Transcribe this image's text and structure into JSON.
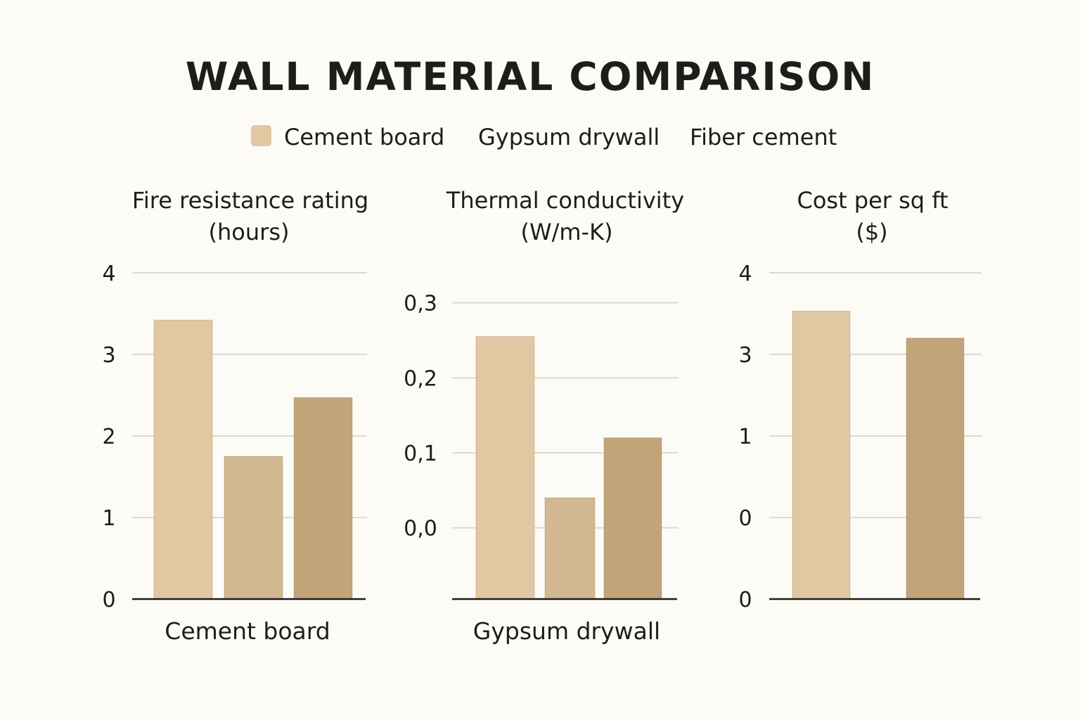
{
  "title": "WALL MATERIAL COMPARISON",
  "legend": [
    {
      "label": "Cement board",
      "color": "#e1c8a2",
      "swatch": true
    },
    {
      "label": "Gypsum drywall",
      "color": "#d2b890",
      "swatch": false
    },
    {
      "label": "Fiber cement",
      "color": "#c1a47a",
      "swatch": false
    }
  ],
  "colors": {
    "cement_board": "#e1c8a2",
    "gypsum_drywall": "#d2b890",
    "fiber_cement": "#c1a47a"
  },
  "chart_data": [
    {
      "type": "bar",
      "title_lines": [
        "Fire resistance rating",
        "(hours)"
      ],
      "tick_labels": [
        "0",
        "1",
        "2",
        "3",
        "4"
      ],
      "xlabel": "Cement board",
      "ylim": [
        0,
        4
      ],
      "series": [
        {
          "name": "Cement board",
          "value": 3.42
        },
        {
          "name": "Gypsum drywall",
          "value": 1.75
        },
        {
          "name": "Fiber cement",
          "value": 2.47
        }
      ],
      "grid": true
    },
    {
      "type": "bar",
      "title_lines": [
        "Thermal conductivity",
        "(W/m-K)"
      ],
      "tick_labels": [
        "0,0",
        "0,1",
        "0,2",
        "0,3"
      ],
      "xlabel": "Gypsum drywall",
      "ylim": [
        -0.095,
        0.34
      ],
      "series": [
        {
          "name": "Cement board",
          "value": 0.255
        },
        {
          "name": "Gypsum drywall",
          "value": 0.04
        },
        {
          "name": "Fiber cement",
          "value": 0.12
        }
      ],
      "grid": true
    },
    {
      "type": "bar",
      "title_lines": [
        "Cost per sq ft",
        "($)"
      ],
      "tick_labels": [
        "0",
        "0",
        "1",
        "3",
        "4"
      ],
      "xlabel": "",
      "ylim": [
        0,
        4
      ],
      "series": [
        {
          "name": "Cement board",
          "value": 3.53
        },
        {
          "name": "Fiber cement",
          "value": 3.2
        }
      ],
      "grid": true
    }
  ]
}
